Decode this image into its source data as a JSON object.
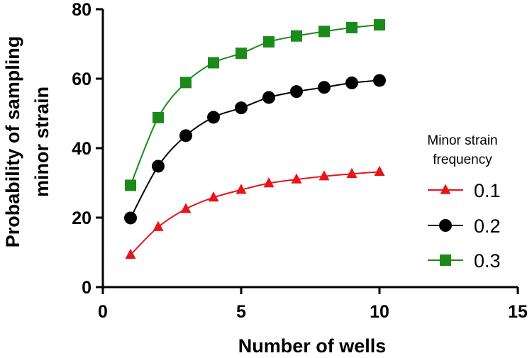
{
  "chart_data": {
    "type": "line",
    "title": "",
    "xlabel": "Number of wells",
    "ylabel_lines": [
      "Probability of sampling",
      "minor strain"
    ],
    "xlim": [
      0,
      15
    ],
    "ylim": [
      0,
      80
    ],
    "xticks": [
      0,
      5,
      10,
      15
    ],
    "yticks": [
      0,
      20,
      40,
      60,
      80
    ],
    "x": [
      1,
      2,
      3,
      4,
      5,
      6,
      7,
      8,
      9,
      10
    ],
    "legend": {
      "title_lines": [
        "Minor strain",
        "frequency"
      ],
      "position": "right"
    },
    "series": [
      {
        "name": "0.1",
        "color": "#e8141b",
        "marker": "triangle",
        "values": [
          9.3,
          17.3,
          22.5,
          25.8,
          28.0,
          29.9,
          31.0,
          31.9,
          32.6,
          33.2
        ]
      },
      {
        "name": "0.2",
        "color": "#000000",
        "marker": "circle",
        "values": [
          19.9,
          34.8,
          43.6,
          48.9,
          51.6,
          54.6,
          56.3,
          57.5,
          58.8,
          59.5
        ]
      },
      {
        "name": "0.3",
        "color": "#1b8a1b",
        "marker": "square",
        "values": [
          29.3,
          48.8,
          58.9,
          64.6,
          67.3,
          70.6,
          72.3,
          73.6,
          74.7,
          75.5
        ]
      }
    ]
  }
}
